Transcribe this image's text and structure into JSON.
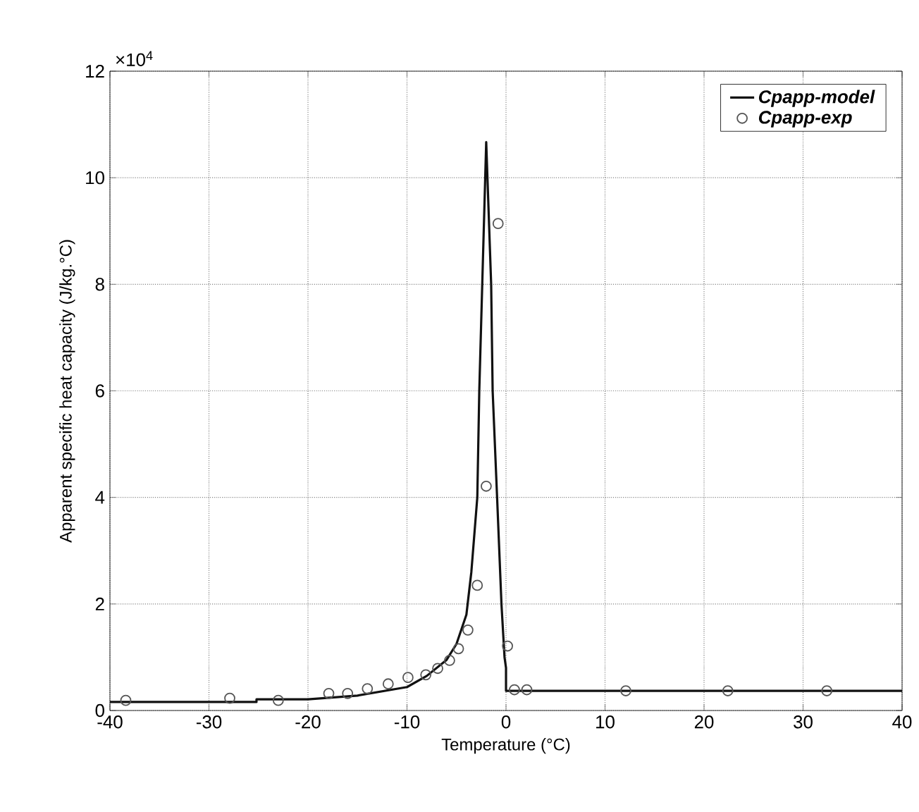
{
  "chart_data": {
    "type": "line",
    "xlabel": "Temperature (°C)",
    "ylabel": "Apparent specific heat capacity (J/kg.°C)",
    "annotations": [
      "×10$^{4}$"
    ],
    "xlim": [
      -40,
      40
    ],
    "ylim": [
      0,
      12
    ],
    "xticks": [
      -40,
      -30,
      -20,
      -10,
      0,
      10,
      20,
      30,
      40
    ],
    "yticks": [
      0,
      2,
      4,
      6,
      8,
      10,
      12
    ],
    "grid": true,
    "legend": "top right",
    "series": [
      {
        "name": "Cpapp-model",
        "color": "#111111",
        "marker": "none",
        "line_style": "solid",
        "x": [
          -40,
          -25.2,
          -25.2,
          -20,
          -15,
          -10,
          -8,
          -6,
          -5,
          -4,
          -3.5,
          -2.9,
          -2.7,
          -2.4,
          -2.0,
          -1.5,
          -1.35,
          -0.9,
          -0.46,
          -0.15,
          0,
          0,
          40
        ],
        "values": [
          0.16,
          0.16,
          0.21,
          0.21,
          0.28,
          0.44,
          0.65,
          0.95,
          1.25,
          1.8,
          2.6,
          4,
          6,
          8,
          10.67,
          8,
          6,
          4,
          2,
          1,
          0.8,
          0.37,
          0.37
        ]
      },
      {
        "name": "Cpapp-exp",
        "type": "scatter",
        "color": "#555555",
        "marker": "circle",
        "x": [
          -38.4,
          -27.9,
          -23.0,
          -17.9,
          -16.0,
          -14.0,
          -11.9,
          -9.9,
          -8.1,
          -6.9,
          -5.7,
          -4.8,
          -3.85,
          -2.9,
          -2.0,
          -0.8,
          0.15,
          0.85,
          2.1,
          12.1,
          22.4,
          32.4
        ],
        "values": [
          0.19,
          0.23,
          0.19,
          0.32,
          0.32,
          0.41,
          0.5,
          0.62,
          0.67,
          0.79,
          0.94,
          1.16,
          1.51,
          2.35,
          4.21,
          9.14,
          1.21,
          0.39,
          0.39,
          0.37,
          0.37,
          0.37
        ]
      }
    ]
  }
}
